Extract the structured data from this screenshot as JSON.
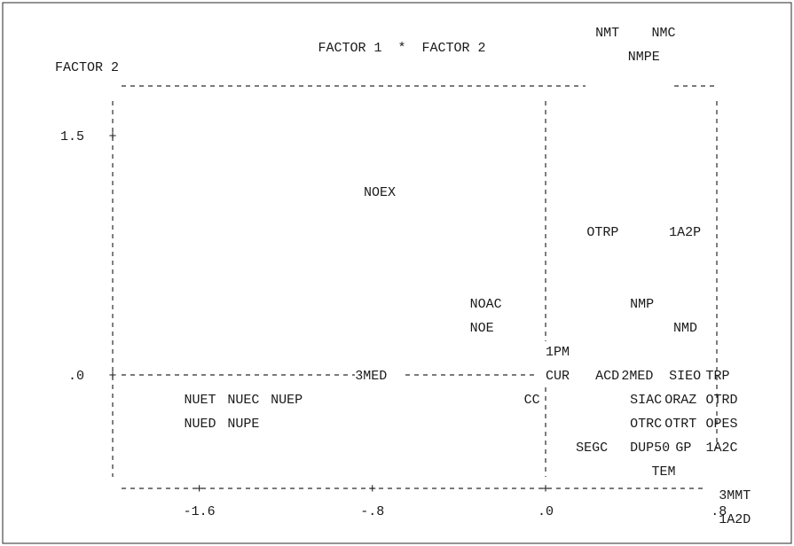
{
  "chart_data": {
    "type": "scatter",
    "title": "FACTOR 1  *  FACTOR 2",
    "ylabel": "FACTOR 2",
    "xlabel": "",
    "x_ticks": [
      "-1.6",
      "-.8",
      ".0",
      ".8"
    ],
    "y_ticks": [
      "1.5",
      ".0"
    ],
    "grid": false,
    "points": [
      {
        "label": "NMT",
        "x": 0.23,
        "y": 2.15
      },
      {
        "label": "NMC",
        "x": 0.49,
        "y": 2.15
      },
      {
        "label": "NMPE",
        "x": 0.38,
        "y": 2.0
      },
      {
        "label": "NOEX",
        "x": -0.84,
        "y": 1.15
      },
      {
        "label": "OTRP",
        "x": 0.19,
        "y": 0.9
      },
      {
        "label": "1A2P",
        "x": 0.57,
        "y": 0.9
      },
      {
        "label": "NOAC",
        "x": -0.35,
        "y": 0.45
      },
      {
        "label": "NMP",
        "x": 0.39,
        "y": 0.45
      },
      {
        "label": "NOE",
        "x": -0.35,
        "y": 0.3
      },
      {
        "label": "NMD",
        "x": 0.59,
        "y": 0.3
      },
      {
        "label": "1PM",
        "x": 0.0,
        "y": 0.15
      },
      {
        "label": "3MED",
        "x": -0.88,
        "y": 0.0
      },
      {
        "label": "CUR",
        "x": 0.0,
        "y": 0.0
      },
      {
        "label": "ACD",
        "x": 0.23,
        "y": 0.0
      },
      {
        "label": "2MED",
        "x": 0.35,
        "y": 0.0
      },
      {
        "label": "SIEO",
        "x": 0.57,
        "y": 0.0
      },
      {
        "label": "TRP",
        "x": 0.74,
        "y": 0.0
      },
      {
        "label": "NUET",
        "x": -1.67,
        "y": -0.15
      },
      {
        "label": "NUEC",
        "x": -1.47,
        "y": -0.15
      },
      {
        "label": "NUEP",
        "x": -1.27,
        "y": -0.15
      },
      {
        "label": "CC",
        "x": -0.1,
        "y": -0.15
      },
      {
        "label": "SIAC",
        "x": 0.39,
        "y": -0.15
      },
      {
        "label": "ORAZ",
        "x": 0.55,
        "y": -0.15
      },
      {
        "label": "OTRD",
        "x": 0.74,
        "y": -0.15
      },
      {
        "label": "NUED",
        "x": -1.67,
        "y": -0.3
      },
      {
        "label": "NUPE",
        "x": -1.47,
        "y": -0.3
      },
      {
        "label": "OTRC",
        "x": 0.39,
        "y": -0.3
      },
      {
        "label": "OTRT",
        "x": 0.55,
        "y": -0.3
      },
      {
        "label": "OPES",
        "x": 0.74,
        "y": -0.3
      },
      {
        "label": "SEGC",
        "x": 0.14,
        "y": -0.45
      },
      {
        "label": "DUP50",
        "x": 0.39,
        "y": -0.45
      },
      {
        "label": "GP",
        "x": 0.6,
        "y": -0.45
      },
      {
        "label": "1A2C",
        "x": 0.74,
        "y": -0.45
      },
      {
        "label": "TEM",
        "x": 0.49,
        "y": -0.6
      },
      {
        "label": "3MMT",
        "x": 0.8,
        "y": -0.75
      },
      {
        "label": "1A2D",
        "x": 0.8,
        "y": -0.9
      }
    ]
  }
}
